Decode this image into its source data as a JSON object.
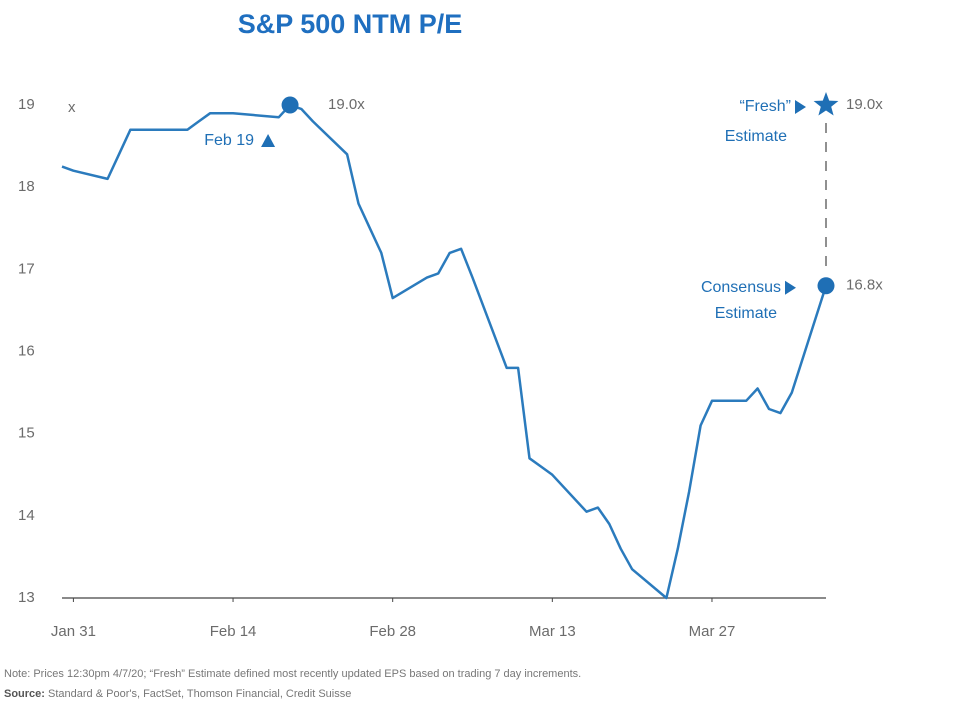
{
  "chart_data": {
    "type": "line",
    "title": "S&P 500 NTM P/E",
    "y_unit": "x",
    "color": "#2b7bbd",
    "marker_color": "#1f6fb5",
    "x": [
      "Jan 30",
      "Jan 31",
      "Feb 3",
      "Feb 4",
      "Feb 5",
      "Feb 6",
      "Feb 7",
      "Feb 10",
      "Feb 11",
      "Feb 12",
      "Feb 13",
      "Feb 14",
      "Feb 18",
      "Feb 19",
      "Feb 20",
      "Feb 21",
      "Feb 24",
      "Feb 25",
      "Feb 26",
      "Feb 27",
      "Feb 28",
      "Mar 2",
      "Mar 3",
      "Mar 4",
      "Mar 5",
      "Mar 6",
      "Mar 9",
      "Mar 10",
      "Mar 11",
      "Mar 12",
      "Mar 13",
      "Mar 16",
      "Mar 17",
      "Mar 18",
      "Mar 19",
      "Mar 20",
      "Mar 23",
      "Mar 24",
      "Mar 25",
      "Mar 26",
      "Mar 27",
      "Mar 30",
      "Mar 31",
      "Apr 1",
      "Apr 2",
      "Apr 3",
      "Apr 6"
    ],
    "values": [
      18.25,
      18.2,
      18.1,
      18.4,
      18.7,
      18.7,
      18.7,
      18.7,
      18.8,
      18.9,
      18.9,
      18.9,
      18.85,
      19.0,
      18.95,
      18.8,
      18.4,
      17.8,
      17.5,
      17.2,
      16.65,
      16.9,
      16.95,
      17.2,
      17.25,
      16.9,
      15.8,
      15.8,
      14.7,
      14.6,
      14.5,
      14.05,
      14.1,
      13.9,
      13.6,
      13.35,
      13.0,
      13.6,
      14.3,
      15.1,
      15.4,
      15.4,
      15.55,
      15.3,
      15.25,
      15.5,
      16.8
    ],
    "xlim": [
      "Jan 30",
      "Apr 6"
    ],
    "xticks": [
      "Jan 31",
      "Feb 14",
      "Feb 28",
      "Mar 13",
      "Mar 27"
    ],
    "ylim": [
      13,
      19
    ],
    "yticks": [
      13,
      14,
      15,
      16,
      17,
      18,
      19
    ],
    "markers": [
      {
        "text": [
          "Feb 19"
        ],
        "x": "Feb 19",
        "value": 19.0,
        "value_label": "19.0x",
        "shape": "circle"
      },
      {
        "text": [
          "“Fresh”",
          "Estimate"
        ],
        "x": "Apr 6",
        "value": 19.0,
        "value_label": "19.0x",
        "shape": "star"
      },
      {
        "text": [
          "Consensus",
          "Estimate"
        ],
        "x": "Apr 6",
        "value": 16.8,
        "value_label": "16.8x",
        "shape": "circle"
      }
    ],
    "note": "Note: Prices 12:30pm 4/7/20; “Fresh” Estimate defined most recently updated EPS based on trading 7 day increments.",
    "source_label": "Source:",
    "source": "Standard & Poor's, FactSet, Thomson Financial, Credit Suisse"
  }
}
